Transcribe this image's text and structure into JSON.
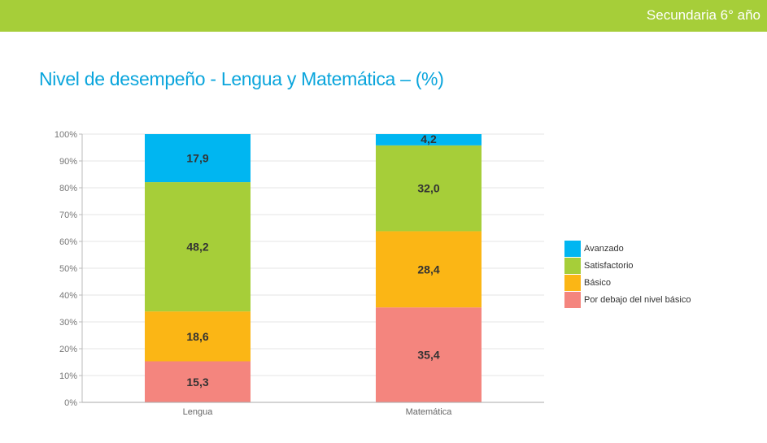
{
  "header": {
    "label": "Secundaria 6° año"
  },
  "colors": {
    "header_bar": "#a6ce39",
    "title": "#0aa5dc"
  },
  "chart_data": {
    "type": "bar",
    "stacked": true,
    "title": "Nivel de desempeño - Lengua y Matemática – (%)",
    "categories": [
      "Lengua",
      "Matemática"
    ],
    "series": [
      {
        "name": "Por debajo del nivel básico",
        "color": "#f4857e",
        "values": [
          15.3,
          35.4
        ],
        "labels": [
          "15,3",
          "35,4"
        ]
      },
      {
        "name": "Básico",
        "color": "#fbb615",
        "values": [
          18.6,
          28.4
        ],
        "labels": [
          "18,6",
          "28,4"
        ]
      },
      {
        "name": "Satisfactorio",
        "color": "#a6ce39",
        "values": [
          48.2,
          32.0
        ],
        "labels": [
          "48,2",
          "32,0"
        ]
      },
      {
        "name": "Avanzado",
        "color": "#00b6f1",
        "values": [
          17.9,
          4.2
        ],
        "labels": [
          "17,9",
          "4,2"
        ]
      }
    ],
    "y_ticks": [
      "0%",
      "10%",
      "20%",
      "30%",
      "40%",
      "50%",
      "60%",
      "70%",
      "80%",
      "90%",
      "100%"
    ],
    "ylim": [
      0,
      100
    ],
    "grid": true,
    "legend_position": "right",
    "legend_order": [
      "Avanzado",
      "Satisfactorio",
      "Básico",
      "Por debajo del nivel básico"
    ]
  }
}
